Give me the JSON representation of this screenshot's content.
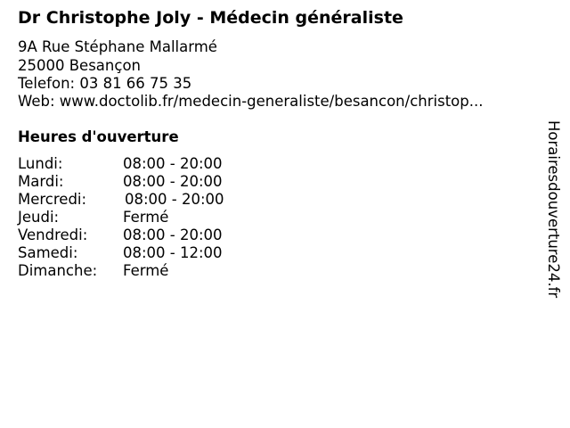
{
  "title": "Dr Christophe Joly - Médecin généraliste",
  "address": {
    "street": "9A Rue Stéphane Mallarmé",
    "city": "25000 Besançon",
    "phone": "Telefon: 03 81 66 75 35",
    "web": "Web: www.doctolib.fr/medecin-generaliste/besancon/christop..."
  },
  "hours": {
    "heading": "Heures d'ouverture",
    "rows": [
      {
        "day": "Lundi:",
        "time": "08:00 - 20:00"
      },
      {
        "day": "Mardi:",
        "time": "08:00 - 20:00"
      },
      {
        "day": "Mercredi:",
        "time": "08:00 - 20:00"
      },
      {
        "day": "Jeudi:",
        "time": "Fermé"
      },
      {
        "day": "Vendredi:",
        "time": "08:00 - 20:00"
      },
      {
        "day": "Samedi:",
        "time": "08:00 - 12:00"
      },
      {
        "day": "Dimanche:",
        "time": "Fermé"
      }
    ]
  },
  "watermark": "Horairesdouverture24.fr"
}
